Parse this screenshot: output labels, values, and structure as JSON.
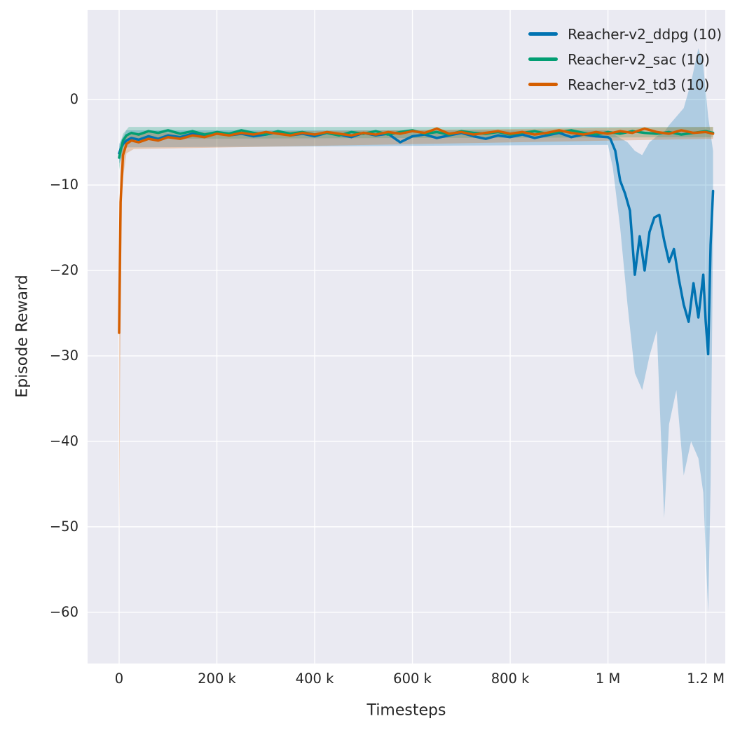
{
  "colors": {
    "figure_background": "#ffffff",
    "plot_background": "#eaeaf2",
    "grid": "#ffffff",
    "text": "#262626"
  },
  "chart_data": {
    "type": "line",
    "title": "",
    "xlabel": "Timesteps",
    "ylabel": "Episode Reward",
    "x_unit": "thousand timesteps",
    "xlim": [
      -64.5,
      1240
    ],
    "ylim": [
      -66,
      10.5
    ],
    "grid": true,
    "legend_position": "upper right",
    "background": "#eaeaf2",
    "grid_color": "#ffffff",
    "text_color": "#262626",
    "band_opacity": 0.25,
    "line_width": 3.5,
    "x_ticks": [
      {
        "value": 0,
        "label": "0"
      },
      {
        "value": 200,
        "label": "200 k"
      },
      {
        "value": 400,
        "label": "400 k"
      },
      {
        "value": 600,
        "label": "600 k"
      },
      {
        "value": 800,
        "label": "800 k"
      },
      {
        "value": 1000,
        "label": "1 M"
      },
      {
        "value": 1200,
        "label": "1.2 M"
      }
    ],
    "y_ticks": [
      {
        "value": 0,
        "label": "0"
      },
      {
        "value": -10,
        "label": "−10"
      },
      {
        "value": -20,
        "label": "−20"
      },
      {
        "value": -30,
        "label": "−30"
      },
      {
        "value": -40,
        "label": "−40"
      },
      {
        "value": -50,
        "label": "−50"
      },
      {
        "value": -60,
        "label": "−60"
      }
    ],
    "series": [
      {
        "id": "ddpg",
        "name": "Reacher-v2_ddpg (10)",
        "color": "#0173b2",
        "x": [
          0,
          3,
          8,
          15,
          25,
          40,
          60,
          80,
          100,
          125,
          150,
          175,
          200,
          225,
          250,
          275,
          300,
          325,
          350,
          375,
          400,
          425,
          450,
          475,
          500,
          525,
          550,
          575,
          600,
          625,
          650,
          675,
          700,
          725,
          750,
          775,
          800,
          825,
          850,
          875,
          900,
          925,
          950,
          975,
          1000,
          1005,
          1015,
          1025,
          1035,
          1045,
          1055,
          1065,
          1075,
          1085,
          1095,
          1105,
          1115,
          1125,
          1135,
          1145,
          1155,
          1165,
          1175,
          1185,
          1195,
          1200,
          1205,
          1210,
          1215
        ],
        "y": [
          -6.3,
          -5.8,
          -5.2,
          -4.8,
          -4.5,
          -4.7,
          -4.3,
          -4.6,
          -4.2,
          -4.4,
          -4.0,
          -4.3,
          -3.9,
          -4.2,
          -4.0,
          -4.3,
          -4.1,
          -3.8,
          -4.2,
          -4.0,
          -4.3,
          -3.9,
          -4.1,
          -4.4,
          -3.9,
          -4.2,
          -4.0,
          -5.0,
          -4.3,
          -4.1,
          -4.5,
          -4.2,
          -3.9,
          -4.3,
          -4.6,
          -4.2,
          -4.4,
          -4.1,
          -4.5,
          -4.2,
          -3.9,
          -4.4,
          -4.1,
          -4.3,
          -4.4,
          -4.6,
          -6.0,
          -9.5,
          -11.0,
          -13.0,
          -20.5,
          -16.0,
          -20.0,
          -15.5,
          -13.8,
          -13.5,
          -16.5,
          -19.0,
          -17.5,
          -21.0,
          -24.0,
          -26.0,
          -21.5,
          -25.5,
          -20.5,
          -26.0,
          -29.8,
          -17.0,
          -10.7
        ],
        "band": {
          "x": [
            0,
            15,
            1000,
            1010,
            1025,
            1040,
            1055,
            1070,
            1085,
            1100,
            1115,
            1125,
            1140,
            1155,
            1170,
            1185,
            1195,
            1205,
            1210,
            1215
          ],
          "lo": [
            -7.5,
            -5.6,
            -5.3,
            -8,
            -15,
            -24,
            -32,
            -34,
            -30,
            -27,
            -49,
            -38,
            -34,
            -44,
            -40,
            -42,
            -46,
            -60,
            -45,
            -16
          ],
          "hi": [
            -5.2,
            -3.6,
            -3.6,
            -4.0,
            -4.5,
            -5.0,
            -6.0,
            -6.5,
            -5.0,
            -4.3,
            -3.8,
            -3.0,
            -2.0,
            -1.0,
            2.0,
            6.0,
            4.0,
            -2.0,
            -4.0,
            -6.0
          ]
        }
      },
      {
        "id": "sac",
        "name": "Reacher-v2_sac (10)",
        "color": "#029e73",
        "x": [
          0,
          3,
          8,
          15,
          25,
          40,
          60,
          80,
          100,
          125,
          150,
          175,
          200,
          225,
          250,
          275,
          300,
          325,
          350,
          375,
          400,
          425,
          450,
          475,
          500,
          525,
          550,
          575,
          600,
          625,
          650,
          675,
          700,
          725,
          750,
          775,
          800,
          825,
          850,
          875,
          900,
          925,
          950,
          975,
          1000,
          1025,
          1050,
          1075,
          1100,
          1125,
          1150,
          1175,
          1200,
          1215
        ],
        "y": [
          -6.8,
          -6.0,
          -4.8,
          -4.2,
          -3.9,
          -4.1,
          -3.7,
          -3.9,
          -3.6,
          -4.0,
          -3.7,
          -4.1,
          -3.8,
          -4.0,
          -3.6,
          -3.9,
          -4.1,
          -3.7,
          -4.0,
          -3.8,
          -4.1,
          -3.9,
          -4.2,
          -3.8,
          -4.0,
          -3.7,
          -4.1,
          -3.8,
          -3.6,
          -4.0,
          -3.8,
          -4.1,
          -3.7,
          -3.9,
          -4.0,
          -3.8,
          -4.1,
          -3.9,
          -3.7,
          -4.0,
          -3.8,
          -3.6,
          -3.9,
          -4.1,
          -3.8,
          -4.0,
          -3.7,
          -3.9,
          -4.0,
          -3.8,
          -4.1,
          -3.9,
          -3.7,
          -3.9
        ],
        "band": {
          "x": [
            0,
            8,
            20,
            1215
          ],
          "lo": [
            -8.2,
            -5.6,
            -4.6,
            -4.4
          ],
          "hi": [
            -5.6,
            -4.0,
            -3.2,
            -3.2
          ]
        }
      },
      {
        "id": "td3",
        "name": "Reacher-v2_td3 (10)",
        "color": "#d55e00",
        "x": [
          0,
          3,
          8,
          15,
          25,
          40,
          60,
          80,
          100,
          125,
          150,
          175,
          200,
          225,
          250,
          275,
          300,
          325,
          350,
          375,
          400,
          425,
          450,
          475,
          500,
          525,
          550,
          575,
          600,
          625,
          650,
          675,
          700,
          725,
          750,
          775,
          800,
          825,
          850,
          875,
          900,
          925,
          950,
          975,
          1000,
          1025,
          1050,
          1075,
          1100,
          1125,
          1150,
          1175,
          1200,
          1215
        ],
        "y": [
          -27.3,
          -12.0,
          -6.5,
          -5.2,
          -4.8,
          -5.0,
          -4.6,
          -4.8,
          -4.4,
          -4.6,
          -4.2,
          -4.4,
          -4.0,
          -4.2,
          -3.9,
          -4.1,
          -3.8,
          -4.0,
          -4.2,
          -3.9,
          -4.1,
          -3.8,
          -4.0,
          -4.2,
          -3.9,
          -4.1,
          -3.8,
          -4.0,
          -3.7,
          -3.9,
          -3.4,
          -4.0,
          -3.8,
          -4.1,
          -3.9,
          -3.7,
          -4.0,
          -3.8,
          -4.1,
          -3.9,
          -3.6,
          -3.9,
          -4.1,
          -3.8,
          -4.0,
          -3.7,
          -3.9,
          -3.4,
          -3.8,
          -4.0,
          -3.6,
          -3.9,
          -3.8,
          -4.0
        ],
        "band": {
          "x": [
            0,
            2,
            6,
            15,
            30,
            1215
          ],
          "lo": [
            -51,
            -33,
            -10,
            -6.3,
            -5.8,
            -4.6
          ],
          "hi": [
            -20,
            -9,
            -4.8,
            -4.1,
            -3.9,
            -3.2
          ]
        }
      }
    ]
  }
}
